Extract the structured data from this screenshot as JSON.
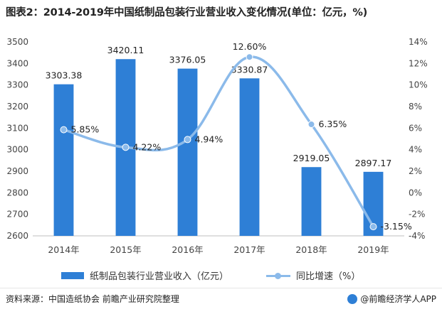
{
  "header": {
    "title": "图表2：2014-2019年中国纸制品包装行业营业收入变化情况(单位：亿元，%)"
  },
  "chart_data": {
    "type": "bar",
    "title": "图表2：2014-2019年中国纸制品包装行业营业收入变化情况(单位：亿元，%)",
    "categories": [
      "2014年",
      "2015年",
      "2016年",
      "2017年",
      "2018年",
      "2019年"
    ],
    "series": [
      {
        "name": "纸制品包装行业营业收入（亿元）",
        "type": "bar",
        "axis": "left",
        "color": "#2e7fd6",
        "values": [
          3303.38,
          3420.11,
          3376.05,
          3330.87,
          2919.05,
          2897.17
        ],
        "labels": [
          "3303.38",
          "3420.11",
          "3376.05",
          "3330.87",
          "2919.05",
          "2897.17"
        ]
      },
      {
        "name": "同比增速（%）",
        "type": "line",
        "smooth": true,
        "axis": "right",
        "color": "#8bbaea",
        "values": [
          5.85,
          4.22,
          4.94,
          12.6,
          6.35,
          -3.15
        ],
        "labels": [
          "5.85%",
          "4.22%",
          "4.94%",
          "12.60%",
          "6.35%",
          "-3.15%"
        ]
      }
    ],
    "y_left": {
      "ylim": [
        2600,
        3500
      ],
      "ticks": [
        "2600",
        "2700",
        "2800",
        "2900",
        "3000",
        "3100",
        "3200",
        "3300",
        "3400",
        "3500"
      ]
    },
    "y_right": {
      "ylim": [
        -4,
        14
      ],
      "ticks": [
        "-4%",
        "-2%",
        "0%",
        "2%",
        "4%",
        "6%",
        "8%",
        "10%",
        "12%",
        "14%"
      ]
    },
    "grid": false,
    "legend": "bottom"
  },
  "legend": {
    "bar_label": "纸制品包装行业营业收入（亿元）",
    "line_label": "同比增速（%）"
  },
  "footer": {
    "source": "资料来源：中国造纸协会 前瞻产业研究院整理",
    "brand": "@前瞻经济学人APP"
  }
}
